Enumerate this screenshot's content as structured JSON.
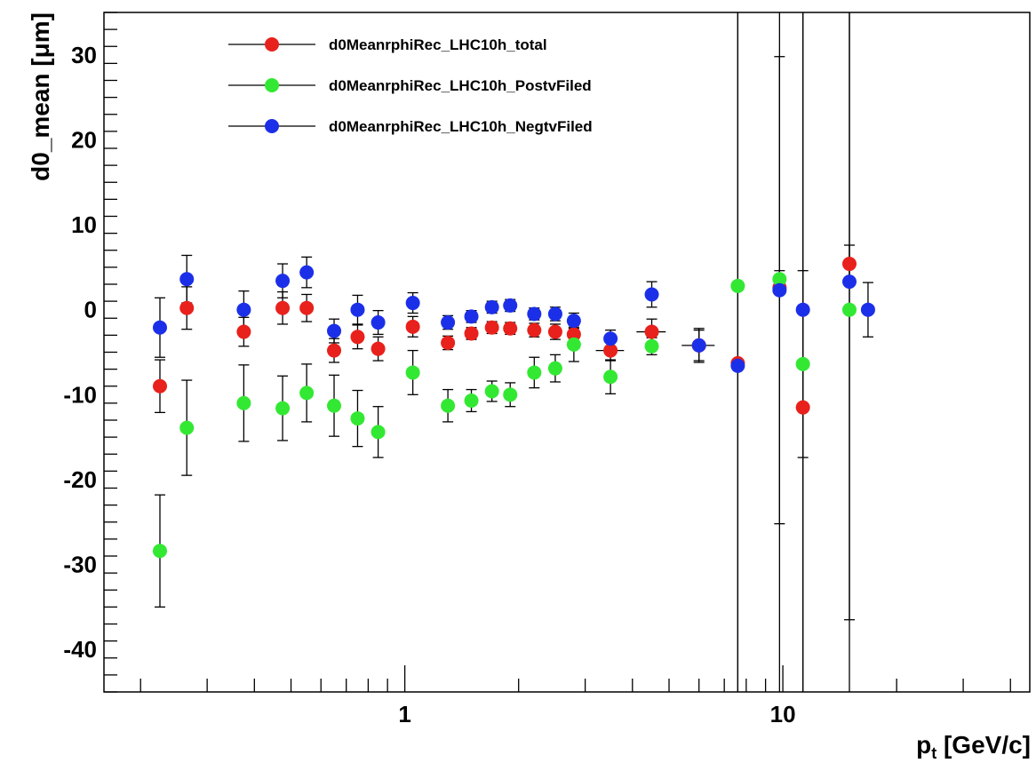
{
  "chart_data": {
    "type": "scatter",
    "xlabel_main": "p",
    "xlabel_sub": "t",
    "xlabel_unit": " [GeV/c]",
    "ylabel": "d0_mean [μm]",
    "x_scale": "log",
    "xlim": [
      0.16,
      45
    ],
    "ylim": [
      -45,
      35
    ],
    "y_ticks": [
      30,
      20,
      10,
      0,
      -10,
      -20,
      -30,
      -40
    ],
    "x_tick_labels": [
      {
        "value": 1,
        "label": "1"
      },
      {
        "value": 10,
        "label": "10"
      }
    ],
    "legend_position": "top-left",
    "grid": false,
    "series": [
      {
        "name": "d0MeanrphiRec_LHC10h_total",
        "color": "#e8211c",
        "points": [
          [
            0.225,
            -9.0,
            3.1
          ],
          [
            0.265,
            0.2,
            2.5
          ],
          [
            0.375,
            -2.6,
            1.7
          ],
          [
            0.475,
            0.2,
            1.9
          ],
          [
            0.55,
            0.2,
            1.6
          ],
          [
            0.65,
            -4.8,
            1.4
          ],
          [
            0.75,
            -3.2,
            1.4
          ],
          [
            0.85,
            -4.6,
            1.4
          ],
          [
            1.05,
            -2.0,
            1.2
          ],
          [
            1.3,
            -3.9,
            0.8
          ],
          [
            1.5,
            -2.8,
            0.7
          ],
          [
            1.7,
            -2.1,
            0.7
          ],
          [
            1.9,
            -2.2,
            0.7
          ],
          [
            2.2,
            -2.4,
            0.8
          ],
          [
            2.5,
            -2.6,
            0.9
          ],
          [
            2.8,
            -2.9,
            1.0
          ],
          [
            3.5,
            -4.8,
            1.2
          ],
          [
            4.5,
            -2.6,
            1.5
          ],
          [
            6.0,
            -4.2,
            1.8
          ],
          [
            7.6,
            -6.3,
            50
          ],
          [
            9.8,
            2.6,
            50
          ],
          [
            11.3,
            -11.5,
            50
          ],
          [
            15.0,
            5.4,
            2.2
          ]
        ],
        "x_err": [
          [
            3.5,
            0.3
          ],
          [
            4.5,
            0.4
          ],
          [
            6.0,
            0.6
          ]
        ]
      },
      {
        "name": "d0MeanrphiRec_LHC10h_PostvFiled",
        "color": "#33e833",
        "points": [
          [
            0.225,
            -28.4,
            6.6
          ],
          [
            0.265,
            -13.9,
            5.6
          ],
          [
            0.375,
            -11.0,
            4.5
          ],
          [
            0.475,
            -11.6,
            3.8
          ],
          [
            0.55,
            -9.8,
            3.4
          ],
          [
            0.65,
            -11.3,
            3.6
          ],
          [
            0.75,
            -12.8,
            3.3
          ],
          [
            0.85,
            -14.4,
            3.0
          ],
          [
            1.05,
            -7.4,
            2.6
          ],
          [
            1.3,
            -11.3,
            1.9
          ],
          [
            1.5,
            -10.7,
            1.3
          ],
          [
            1.7,
            -9.6,
            1.2
          ],
          [
            1.9,
            -10.0,
            1.4
          ],
          [
            2.2,
            -7.4,
            1.8
          ],
          [
            2.5,
            -6.9,
            1.6
          ],
          [
            2.8,
            -4.1,
            2.0
          ],
          [
            3.5,
            -7.9,
            2.0
          ],
          [
            4.5,
            -4.3,
            1.0
          ],
          [
            7.6,
            2.8,
            0.5
          ],
          [
            9.8,
            3.6,
            1.0
          ],
          [
            11.3,
            -6.4,
            11.0
          ],
          [
            15.0,
            0.0,
            36.5
          ]
        ]
      },
      {
        "name": "d0MeanrphiRec_LHC10h_NegtvFiled",
        "color": "#1c2fe8",
        "points": [
          [
            0.225,
            -2.1,
            3.5
          ],
          [
            0.265,
            3.6,
            2.8
          ],
          [
            0.375,
            0.0,
            2.2
          ],
          [
            0.475,
            3.4,
            2.0
          ],
          [
            0.55,
            4.4,
            1.8
          ],
          [
            0.65,
            -2.5,
            1.4
          ],
          [
            0.75,
            0.0,
            1.7
          ],
          [
            0.85,
            -1.5,
            1.4
          ],
          [
            1.05,
            0.8,
            1.2
          ],
          [
            1.3,
            -1.5,
            0.8
          ],
          [
            1.5,
            -0.8,
            0.7
          ],
          [
            1.7,
            0.3,
            0.7
          ],
          [
            1.9,
            0.5,
            0.7
          ],
          [
            2.2,
            -0.5,
            0.7
          ],
          [
            2.5,
            -0.5,
            0.8
          ],
          [
            2.8,
            -1.3,
            0.9
          ],
          [
            3.5,
            -3.4,
            1.0
          ],
          [
            4.5,
            1.8,
            1.5
          ],
          [
            6.0,
            -4.2,
            2.0
          ],
          [
            7.6,
            -6.6,
            50
          ],
          [
            9.8,
            2.3,
            27.5
          ],
          [
            11.3,
            0.0,
            50
          ],
          [
            15.0,
            3.3,
            50
          ],
          [
            16.8,
            0.0,
            3.2
          ]
        ]
      }
    ]
  }
}
